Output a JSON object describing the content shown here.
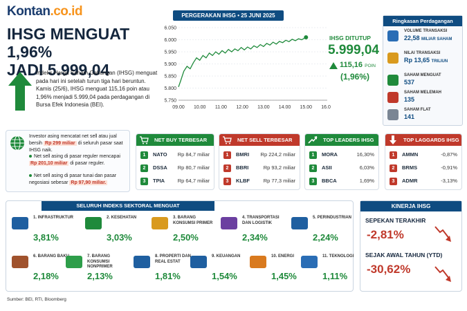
{
  "brand": {
    "name": "Kontan",
    "suffix": ".co.id"
  },
  "headline": {
    "line1": "IHSG MENGUAT 1,96%",
    "line2": "JADI 5.999,04"
  },
  "intro": "Indeks Harga Saham Gabungan (IHSG) menguat pada hari ini setelah turun tiga hari beruntun. Kamis (25/6), IHSG menguat 115,16 poin atau 1,96% menjadi 5.999,04 pada perdagangan di Bursa Efek Indonesia (BEI).",
  "chart_head": "PERGERAKAN IHSG • 25 JUNI 2025",
  "close": {
    "label": "IHSG DITUTUP",
    "value": "5.999,04",
    "change": "115,16",
    "change_unit": "POIN",
    "pct": "(1,96%)"
  },
  "chart_data": {
    "type": "line",
    "x_ticks": [
      "09.00",
      "10.00",
      "11.00",
      "12.00",
      "13.00",
      "14.00",
      "15.00",
      "16.00"
    ],
    "y_ticks": [
      "6.050",
      "6.000",
      "5.950",
      "5.900",
      "5.850",
      "5.800",
      "5.750"
    ],
    "ylim": [
      5750,
      6050
    ],
    "xlim": [
      9,
      16
    ],
    "series": [
      {
        "color": "#1f8a3b",
        "points": [
          [
            9.0,
            5805
          ],
          [
            9.1,
            5830
          ],
          [
            9.25,
            5870
          ],
          [
            9.4,
            5890
          ],
          [
            9.55,
            5880
          ],
          [
            9.7,
            5905
          ],
          [
            9.85,
            5925
          ],
          [
            10.0,
            5915
          ],
          [
            10.15,
            5935
          ],
          [
            10.3,
            5925
          ],
          [
            10.45,
            5945
          ],
          [
            10.6,
            5935
          ],
          [
            10.75,
            5950
          ],
          [
            10.9,
            5940
          ],
          [
            11.05,
            5955
          ],
          [
            11.2,
            5945
          ],
          [
            11.35,
            5960
          ],
          [
            11.5,
            5950
          ],
          [
            11.65,
            5962
          ],
          [
            11.8,
            5955
          ],
          [
            11.95,
            5968
          ],
          [
            12.1,
            5958
          ],
          [
            12.25,
            5970
          ],
          [
            12.4,
            5962
          ],
          [
            12.55,
            5975
          ],
          [
            12.7,
            5968
          ],
          [
            12.85,
            5980
          ],
          [
            13.0,
            5972
          ],
          [
            13.15,
            5985
          ],
          [
            13.3,
            5978
          ],
          [
            13.45,
            5990
          ],
          [
            13.6,
            5982
          ],
          [
            13.75,
            5993
          ],
          [
            13.9,
            5988
          ],
          [
            14.05,
            5998
          ],
          [
            14.2,
            5992
          ],
          [
            14.35,
            6002
          ],
          [
            14.5,
            5996
          ],
          [
            14.65,
            6004
          ],
          [
            14.8,
            6000
          ],
          [
            14.95,
            6008
          ],
          [
            15.0,
            6010
          ]
        ]
      }
    ]
  },
  "ringkasan": {
    "title": "Ringkasan Perdagangan",
    "items": [
      {
        "label": "Volume Transaksi",
        "value": "22,58",
        "unit": "MILIAR SAHAM",
        "color": "#2a6db5",
        "icon": "bar-chart-icon"
      },
      {
        "label": "Nilai Transaksi",
        "value": "Rp 13,65",
        "unit": "TRILIUN",
        "color": "#d99a1e",
        "icon": "coins-icon"
      },
      {
        "label": "Saham Menguat",
        "value": "537",
        "unit": "",
        "color": "#1f8a3b",
        "icon": "arrow-up-icon"
      },
      {
        "label": "Saham Melemah",
        "value": "135",
        "unit": "",
        "color": "#c0392b",
        "icon": "arrow-down-icon"
      },
      {
        "label": "Saham Flat",
        "value": "141",
        "unit": "",
        "color": "#7a8694",
        "icon": "equal-icon"
      }
    ]
  },
  "asing": {
    "intro": "Investor asing mencatat net sell atau jual bersih",
    "amount": "Rp 299 miliar",
    "intro_tail": "di seluruh pasar saat IHSG naik.",
    "b1": "Net sell asing di pasar reguler mencapai",
    "b1_amount": "Rp 201,10 miliar",
    "b1_tail": "di pasar reguler.",
    "b2": "Net sell asing di pasar tunai dan pasar negosiasi sebesar",
    "b2_amount": "Rp 97,90 miliar."
  },
  "net_buy": {
    "title": "NET BUY TERBESAR ASING",
    "rows": [
      {
        "n": "1",
        "name": "NATO",
        "val": "Rp 84,7 miliar"
      },
      {
        "n": "2",
        "name": "DSSA",
        "val": "Rp 80,7 miliar"
      },
      {
        "n": "3",
        "name": "TPIA",
        "val": "Rp 64,7 miliar"
      }
    ]
  },
  "net_sell": {
    "title": "NET SELL TERBESAR ASING",
    "rows": [
      {
        "n": "1",
        "name": "BMRI",
        "val": "Rp 224,2 miliar"
      },
      {
        "n": "2",
        "name": "BBRI",
        "val": "Rp 93,2 miliar"
      },
      {
        "n": "3",
        "name": "KLBF",
        "val": "Rp 77,3 miliar"
      }
    ]
  },
  "leaders": {
    "title": "TOP LEADERS IHSG",
    "rows": [
      {
        "n": "1",
        "name": "MORA",
        "val": "16,30%"
      },
      {
        "n": "2",
        "name": "ASII",
        "val": "6,03%"
      },
      {
        "n": "3",
        "name": "BBCA",
        "val": "1,69%"
      }
    ]
  },
  "laggards": {
    "title": "TOP LAGGARDS IHSG",
    "rows": [
      {
        "n": "1",
        "name": "AMMN",
        "val": "-0,87%"
      },
      {
        "n": "2",
        "name": "BRMS",
        "val": "-0,91%"
      },
      {
        "n": "3",
        "name": "ADMR",
        "val": "-3,13%"
      }
    ]
  },
  "sektoral": {
    "title": "SELURUH INDEKS SEKTORAL MENGUAT",
    "items": [
      {
        "name": "1. INFRASTRUKTUR",
        "val": "3,81%",
        "icon": "bridge-icon"
      },
      {
        "name": "2. KESEHATAN",
        "val": "3,03%",
        "icon": "heartbeat-icon"
      },
      {
        "name": "3. BARANG KONSUMSI PRIMER",
        "val": "2,50%",
        "icon": "basket-icon"
      },
      {
        "name": "4. TRANSPORTASI DAN LOGISTIK",
        "val": "2,34%",
        "icon": "truck-icon"
      },
      {
        "name": "5. PERINDUSTRIAN",
        "val": "2,24%",
        "icon": "factory-icon"
      },
      {
        "name": "6. BARANG BAKU",
        "val": "2,18%",
        "icon": "boxes-icon"
      },
      {
        "name": "7. BARANG KONSUMSI NONPRIMER",
        "val": "2,13%",
        "icon": "shopping-bag-icon"
      },
      {
        "name": "8. PROPERTI DAN REAL ESTAT",
        "val": "1,81%",
        "icon": "buildings-icon"
      },
      {
        "name": "9. KEUANGAN",
        "val": "1,54%",
        "icon": "bank-icon"
      },
      {
        "name": "10. ENERGI",
        "val": "1,45%",
        "icon": "oil-drop-icon"
      },
      {
        "name": "11. TEKNOLOGI",
        "val": "1,11%",
        "icon": "computer-icon"
      }
    ]
  },
  "kinerja": {
    "title": "KINERJA IHSG",
    "week_label": "SEPEKAN TERAKHIR",
    "week_val": "-2,81%",
    "ytd_label": "SEJAK AWAL TAHUN (YTD)",
    "ytd_val": "-30,62%"
  },
  "source": "Sumber: BEI, RTI, Bloomberg"
}
